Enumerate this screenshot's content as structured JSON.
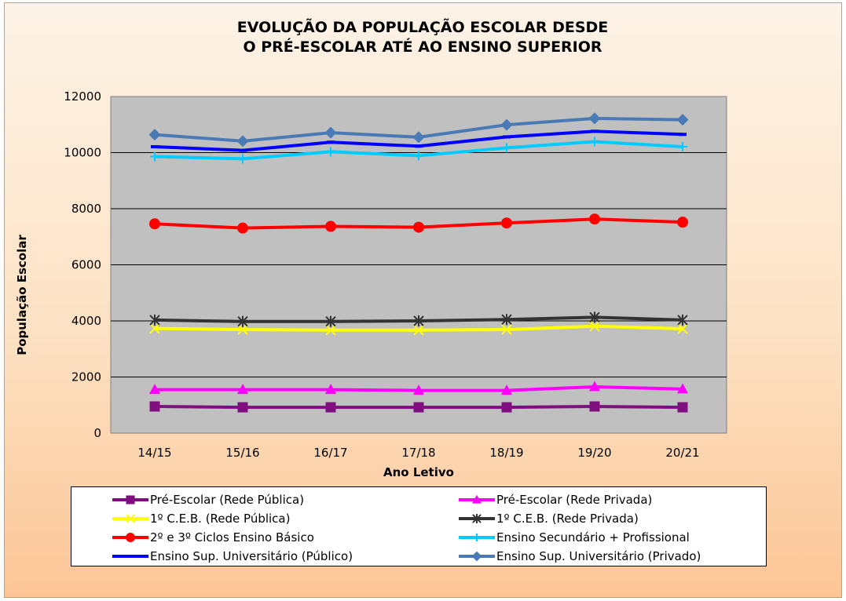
{
  "chart_data": {
    "type": "line",
    "title": [
      "EVOLUÇÃO DA POPULAÇÃO ESCOLAR DESDE",
      "O PRÉ-ESCOLAR ATÉ AO ENSINO SUPERIOR"
    ],
    "xlabel": "Ano Letivo",
    "ylabel": "População Escolar",
    "categories": [
      "14/15",
      "15/16",
      "16/17",
      "17/18",
      "18/19",
      "19/20",
      "20/21"
    ],
    "ylim": [
      0,
      12000
    ],
    "yticks": [
      0,
      2000,
      4000,
      6000,
      8000,
      10000,
      12000
    ],
    "grid": true,
    "plot_background": "#c0c0c0",
    "legend_position": "bottom",
    "series": [
      {
        "name": "Pré-Escolar (Rede Pública)",
        "color": "#7f0f7e",
        "marker": "square",
        "values": [
          950,
          920,
          920,
          920,
          920,
          950,
          920
        ]
      },
      {
        "name": "Pré-Escolar (Rede Privada)",
        "color": "#ff00ff",
        "marker": "triangle",
        "values": [
          1550,
          1550,
          1550,
          1520,
          1520,
          1650,
          1570
        ]
      },
      {
        "name": "1º C.E.B. (Rede Pública)",
        "color": "#ffff00",
        "marker": "x",
        "values": [
          3730,
          3690,
          3670,
          3670,
          3690,
          3810,
          3720
        ]
      },
      {
        "name": "1º C.E.B.  (Rede Privada)",
        "color": "#333333",
        "marker": "star",
        "values": [
          4030,
          3980,
          3980,
          4000,
          4050,
          4130,
          4030
        ]
      },
      {
        "name": "2º e 3º Ciclos Ensino Básico",
        "color": "#ff0000",
        "marker": "circle",
        "values": [
          7460,
          7310,
          7370,
          7340,
          7490,
          7630,
          7520
        ]
      },
      {
        "name": "Ensino Secundário + Profissional",
        "color": "#00ccff",
        "marker": "plus",
        "values": [
          9860,
          9780,
          10030,
          9890,
          10170,
          10390,
          10210
        ]
      },
      {
        "name": "Ensino Sup. Universitário  (Público)",
        "color": "#0000ff",
        "marker": "dash",
        "values": [
          10210,
          10080,
          10370,
          10230,
          10560,
          10760,
          10650
        ]
      },
      {
        "name": "Ensino Sup. Universitário  (Privado)",
        "color": "#4a7ab5",
        "marker": "diamond",
        "values": [
          10640,
          10410,
          10710,
          10550,
          10990,
          11220,
          11170
        ]
      }
    ]
  }
}
